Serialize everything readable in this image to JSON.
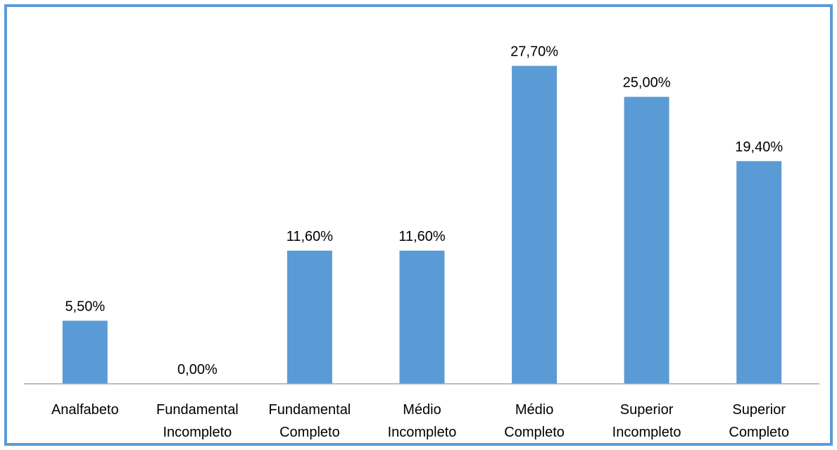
{
  "chart_data": {
    "type": "bar",
    "title": "",
    "xlabel": "",
    "ylabel": "",
    "categories": [
      [
        "Analfabeto"
      ],
      [
        "Fundamental",
        "Incompleto"
      ],
      [
        "Fundamental",
        "Completo"
      ],
      [
        "Médio",
        "Incompleto"
      ],
      [
        "Médio",
        "Completo"
      ],
      [
        "Superior",
        "Incompleto"
      ],
      [
        "Superior",
        "Completo"
      ]
    ],
    "values": [
      5.5,
      0.0,
      11.6,
      11.6,
      27.7,
      25.0,
      19.4
    ],
    "data_labels": [
      "5,50%",
      "0,00%",
      "11,60%",
      "11,60%",
      "27,70%",
      "25,00%",
      "19,40%"
    ],
    "ylim": [
      0,
      30
    ],
    "unit": "%",
    "grid": false,
    "legend": "none",
    "colors": {
      "bar": "#5b9bd5",
      "axis": "#a6a6a6",
      "border": "#5b9bd5"
    }
  }
}
